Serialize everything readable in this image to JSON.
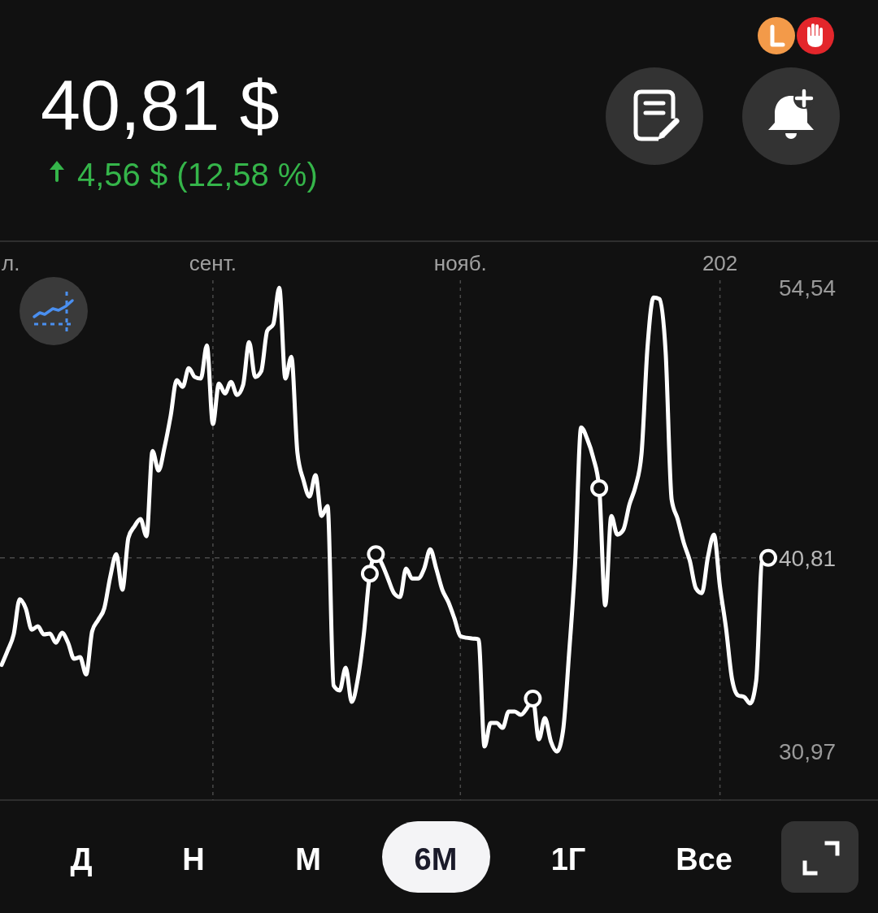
{
  "chart_data": {
    "type": "line",
    "title": "40,81 $",
    "subtitle": "4,56 $ (12,58 %)",
    "annotations": [
      "л.",
      "Д",
      "Н",
      "М",
      "6М",
      "1Г",
      "Все"
    ],
    "categories": [
      null,
      null,
      null,
      null,
      null,
      null,
      null,
      null,
      null,
      null,
      null,
      null,
      null,
      null,
      null,
      null,
      null,
      null,
      null,
      null,
      null,
      null,
      null,
      null,
      null,
      null,
      null,
      null,
      null,
      null,
      null,
      null,
      null,
      null,
      null,
      "сент.",
      null,
      null,
      null,
      null,
      null,
      null,
      null,
      null,
      null,
      null,
      null,
      null,
      null,
      null,
      null,
      null,
      null,
      null,
      null,
      null,
      null,
      null,
      null,
      null,
      null,
      null,
      null,
      null,
      null,
      null,
      null,
      null,
      null,
      null,
      null,
      null,
      null,
      null,
      null,
      null,
      "нояб.",
      null,
      null,
      null,
      null,
      null,
      null,
      null,
      null,
      null,
      null,
      null,
      null,
      null,
      null,
      null,
      null,
      null,
      null,
      null,
      null,
      null,
      null,
      null,
      null,
      null,
      null,
      null,
      null,
      null,
      null,
      null,
      null,
      null,
      null,
      null,
      null,
      null,
      null,
      null,
      null,
      null,
      null,
      "202",
      null,
      null,
      null,
      null,
      null,
      null,
      null,
      null
    ],
    "ylim": [
      28.5,
      56.9
    ],
    "yticks": [
      {
        "value": 54.54,
        "label": "54,54"
      },
      {
        "value": 30.97,
        "label": "30,97"
      }
    ],
    "grid": "x",
    "ref_lines": [
      {
        "axis": "y",
        "value": 40.81,
        "label": "40,81",
        "line_style": "dashed"
      }
    ],
    "series": [
      {
        "color": "#ffffff",
        "values": [
          35.37,
          36.1,
          36.92,
          38.71,
          38.24,
          37.16,
          37.33,
          36.92,
          36.96,
          36.5,
          37.0,
          36.5,
          35.68,
          35.76,
          34.89,
          37.08,
          37.66,
          38.24,
          39.85,
          41.0,
          39.19,
          41.83,
          42.41,
          42.78,
          41.91,
          46.24,
          45.25,
          46.45,
          48.02,
          49.84,
          49.5,
          50.45,
          50.0,
          49.92,
          51.61,
          47.61,
          49.67,
          49.17,
          49.75,
          49.09,
          49.59,
          51.77,
          50.0,
          50.29,
          52.35,
          52.68,
          54.54,
          49.92,
          51.03,
          46.16,
          44.76,
          43.93,
          45.01,
          42.94,
          43.44,
          34.32,
          34.07,
          35.23,
          33.49,
          34.65,
          36.92,
          40.01,
          41.0,
          40.51,
          39.76,
          39.02,
          38.82,
          40.26,
          39.76,
          39.76,
          40.26,
          41.25,
          40.26,
          39.19,
          38.57,
          37.74,
          36.83,
          36.75,
          36.71,
          36.67,
          31.22,
          32.42,
          32.42,
          32.17,
          33.0,
          33.0,
          32.83,
          33.16,
          33.66,
          31.59,
          32.67,
          31.47,
          30.97,
          32.01,
          35.93,
          40.51,
          47.44,
          46.86,
          45.91,
          44.35,
          38.4,
          42.94,
          41.99,
          42.24,
          43.52,
          44.43,
          46.08,
          51.53,
          54.04,
          53.96,
          51.28,
          43.77,
          42.78,
          41.58,
          40.67,
          39.27,
          39.02,
          40.84,
          41.99,
          39.35,
          37.25,
          34.65,
          33.82,
          33.74,
          33.41,
          34.56,
          40.7,
          40.81
        ]
      },
      {
        "type": "scatter",
        "color": "#ffffff",
        "marker": "circle",
        "values": [
          null,
          null,
          null,
          null,
          null,
          null,
          null,
          null,
          null,
          null,
          null,
          null,
          null,
          null,
          null,
          null,
          null,
          null,
          null,
          null,
          null,
          null,
          null,
          null,
          null,
          null,
          null,
          null,
          null,
          null,
          null,
          null,
          null,
          null,
          null,
          null,
          null,
          null,
          null,
          null,
          null,
          null,
          null,
          null,
          null,
          null,
          null,
          null,
          null,
          null,
          null,
          null,
          null,
          null,
          null,
          null,
          null,
          null,
          null,
          null,
          null,
          40.01,
          41.0,
          null,
          null,
          null,
          null,
          null,
          null,
          null,
          null,
          null,
          null,
          null,
          null,
          null,
          null,
          null,
          null,
          null,
          null,
          null,
          null,
          null,
          null,
          null,
          null,
          null,
          33.66,
          null,
          null,
          null,
          null,
          null,
          null,
          null,
          null,
          null,
          null,
          44.35,
          null,
          null,
          null,
          null,
          null,
          null,
          null,
          null,
          null,
          null,
          null,
          null,
          null,
          null,
          null,
          null,
          null,
          null,
          null,
          null,
          null,
          null,
          null,
          null,
          null,
          null,
          null,
          40.81
        ]
      }
    ]
  }
}
